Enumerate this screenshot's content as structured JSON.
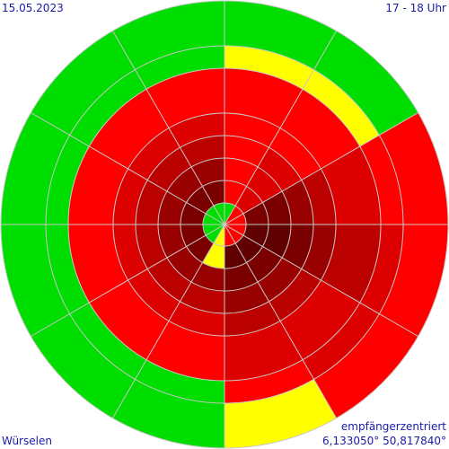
{
  "header": {
    "date": "15.05.2023",
    "time_range": "17 - 18 Uhr"
  },
  "footer": {
    "location": "Würselen",
    "mode": "empfängerzentriert",
    "coordinates": "6,133050° 50,817840°"
  },
  "chart_data": {
    "type": "polar-heatmap",
    "sectors": 12,
    "rings": 8,
    "orientation": "sector 0 starts at north, clockwise, 30° each; ring 0 is innermost",
    "level_colors": {
      "0": "#00dd00",
      "1": "#ffff00",
      "2": "#ff0000",
      "3": "#dd0000",
      "4": "#bb0000",
      "5": "#990000",
      "6": "#7a0000",
      "7": "#600000"
    },
    "grid": true,
    "sector_levels": [
      [
        0,
        2,
        2,
        2,
        2,
        2,
        1,
        0
      ],
      [
        2,
        3,
        3,
        3,
        2,
        2,
        1,
        0
      ],
      [
        2,
        6,
        6,
        5,
        4,
        3,
        2,
        2
      ],
      [
        2,
        7,
        7,
        6,
        5,
        4,
        3,
        2
      ],
      [
        2,
        7,
        6,
        5,
        4,
        3,
        3,
        2
      ],
      [
        2,
        7,
        6,
        5,
        4,
        3,
        2,
        1
      ],
      [
        1,
        1,
        5,
        4,
        3,
        2,
        0,
        0
      ],
      [
        0,
        6,
        5,
        4,
        3,
        2,
        0,
        0
      ],
      [
        0,
        6,
        5,
        4,
        3,
        2,
        0,
        0
      ],
      [
        0,
        6,
        5,
        4,
        3,
        2,
        0,
        0
      ],
      [
        0,
        6,
        5,
        4,
        3,
        2,
        0,
        0
      ],
      [
        0,
        6,
        5,
        4,
        3,
        2,
        0,
        0
      ]
    ]
  }
}
